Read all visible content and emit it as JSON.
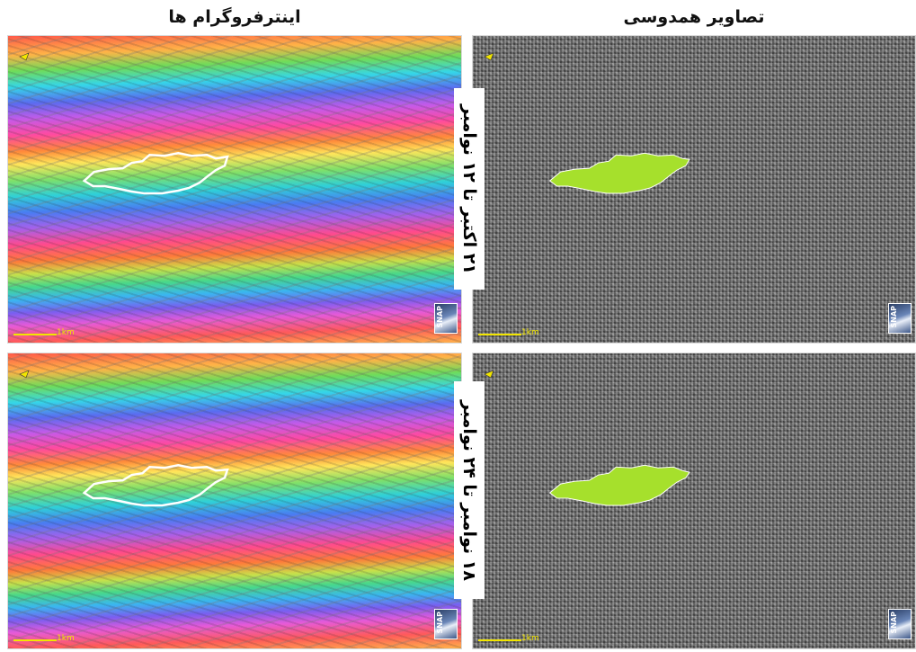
{
  "titles": {
    "interferograms": "اینترفروگرام ها",
    "coherence_images": "تصاویر همدوسی"
  },
  "date_labels": {
    "row1": "۲۱ اکتبر  تا  ۱۲ نوامبر",
    "row2": "۱۸ نوامبر  تا  ۲۴ نوامبر"
  },
  "scalebar_label": "1km",
  "logo_text": "SNAP",
  "colors": {
    "landslide_outline": "#ffffff",
    "landslide_fill": "#a6e02c",
    "scalebar": "#f2e600"
  },
  "icons": [
    "compass-icon",
    "snap-logo",
    "scale-bar"
  ]
}
